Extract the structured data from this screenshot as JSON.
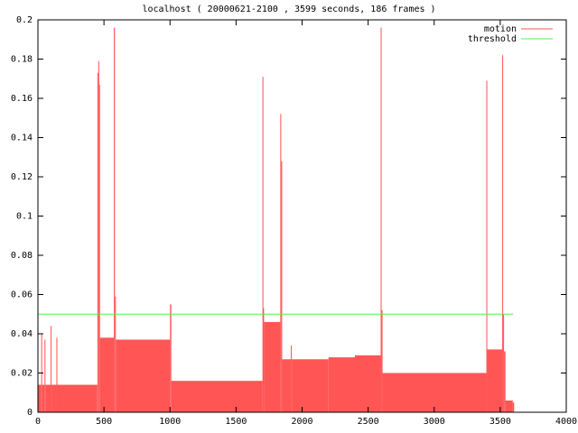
{
  "chart_data": {
    "type": "step-area",
    "title": "localhost ( 20000621-2100 , 3599 seconds, 186 frames )",
    "series": [
      {
        "name": "motion",
        "color": "#ff5555",
        "x": [
          0,
          25,
          32,
          50,
          57,
          96,
          103,
          140,
          147,
          450,
          457,
          463,
          470,
          575,
          583,
          590,
          1000,
          1010,
          1700,
          1705,
          1712,
          1835,
          1842,
          1849,
          1915,
          1922,
          2200,
          2400,
          2595,
          2602,
          2609,
          3395,
          3402,
          3515,
          3522,
          3529,
          3540,
          3595
        ],
        "values": [
          0.014,
          0.04,
          0.014,
          0.037,
          0.014,
          0.044,
          0.014,
          0.038,
          0.014,
          0.173,
          0.179,
          0.167,
          0.038,
          0.196,
          0.059,
          0.037,
          0.055,
          0.016,
          0.171,
          0.053,
          0.046,
          0.152,
          0.128,
          0.027,
          0.034,
          0.027,
          0.028,
          0.029,
          0.196,
          0.052,
          0.02,
          0.169,
          0.032,
          0.182,
          0.05,
          0.031,
          0.006,
          0.005
        ]
      },
      {
        "name": "threshold",
        "color": "#55ee55",
        "x": [
          0,
          3599
        ],
        "values": [
          0.05,
          0.05
        ]
      }
    ],
    "xlim": [
      0,
      4000
    ],
    "xticks": [
      0,
      500,
      1000,
      1500,
      2000,
      2500,
      3000,
      3500,
      4000
    ],
    "ylim": [
      0,
      0.2
    ],
    "yticks": [
      0,
      0.02,
      0.04,
      0.06,
      0.08,
      0.1,
      0.12,
      0.14,
      0.16,
      0.18,
      0.2
    ],
    "legend": "top-right"
  }
}
